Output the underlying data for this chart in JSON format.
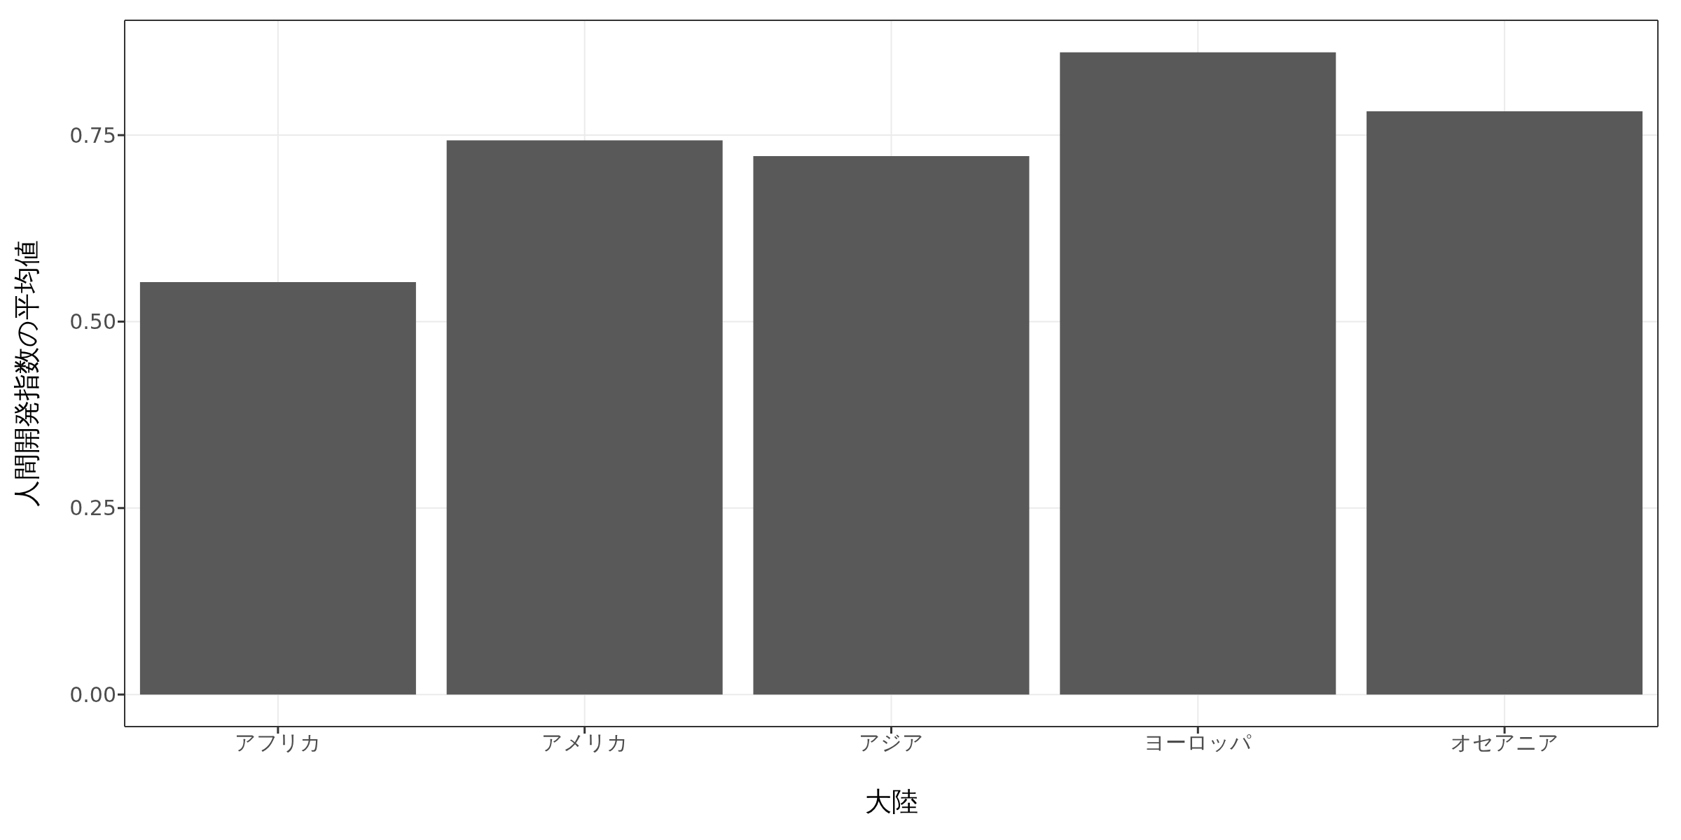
{
  "chart_data": {
    "type": "bar",
    "xlabel": "大陸",
    "ylabel": "人間開発指数の平均値",
    "categories": [
      "アフリカ",
      "アメリカ",
      "アジア",
      "ヨーロッパ",
      "オセアニア"
    ],
    "values": [
      0.553,
      0.743,
      0.722,
      0.861,
      0.782
    ],
    "color": "#595959",
    "ylim": [
      -0.043,
      0.904
    ],
    "yticks": [
      {
        "value": 0,
        "label": "0.00"
      },
      {
        "value": 0.25,
        "label": "0.25"
      },
      {
        "value": 0.5,
        "label": "0.50"
      },
      {
        "value": 0.75,
        "label": "0.75"
      }
    ],
    "grid": true,
    "legend": false
  }
}
